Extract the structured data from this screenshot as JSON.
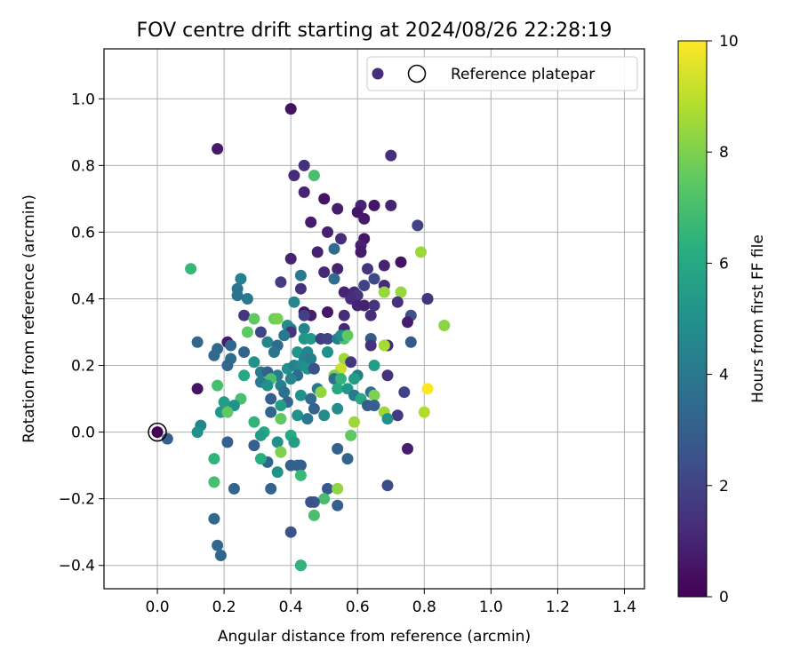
{
  "chart_data": {
    "type": "scatter",
    "title": "FOV centre drift starting at 2024/08/26 22:28:19",
    "xlabel": "Angular distance from reference (arcmin)",
    "ylabel": "Rotation from reference (arcmin)",
    "xlim": [
      -0.16,
      1.46
    ],
    "ylim": [
      -0.47,
      1.15
    ],
    "xticks": [
      "0.0",
      "0.2",
      "0.4",
      "0.6",
      "0.8",
      "1.0",
      "1.2",
      "1.4"
    ],
    "yticks": [
      "−0.4",
      "−0.2",
      "0.0",
      "0.2",
      "0.4",
      "0.6",
      "0.8",
      "1.0"
    ],
    "grid": true,
    "legend": {
      "position": "top-right",
      "entries": [
        "",
        "Reference platepar"
      ]
    },
    "colorbar": {
      "label": "Hours from first FF file",
      "min": 0,
      "max": 10,
      "ticks": [
        "0",
        "2",
        "4",
        "6",
        "8",
        "10"
      ],
      "colormap": "viridis"
    },
    "reference": {
      "x": 0.0,
      "y": 0.0,
      "c": 0.0
    },
    "points": [
      [
        0.4,
        0.97,
        0.5
      ],
      [
        0.18,
        0.85,
        0.7
      ],
      [
        0.7,
        0.83,
        1.3
      ],
      [
        0.44,
        0.8,
        1.4
      ],
      [
        0.47,
        0.77,
        7.0
      ],
      [
        0.41,
        0.77,
        1.2
      ],
      [
        0.44,
        0.72,
        1.0
      ],
      [
        0.5,
        0.7,
        0.5
      ],
      [
        0.7,
        0.68,
        1.0
      ],
      [
        0.65,
        0.68,
        0.6
      ],
      [
        0.61,
        0.68,
        1.0
      ],
      [
        0.54,
        0.67,
        0.8
      ],
      [
        0.6,
        0.66,
        0.6
      ],
      [
        0.46,
        0.63,
        0.8
      ],
      [
        0.62,
        0.64,
        0.7
      ],
      [
        0.78,
        0.62,
        2.0
      ],
      [
        0.51,
        0.6,
        0.9
      ],
      [
        0.55,
        0.58,
        1.3
      ],
      [
        0.62,
        0.58,
        0.6
      ],
      [
        0.61,
        0.56,
        0.9
      ],
      [
        0.53,
        0.55,
        3.5
      ],
      [
        0.61,
        0.54,
        0.7
      ],
      [
        0.48,
        0.54,
        0.9
      ],
      [
        0.79,
        0.54,
        8.5
      ],
      [
        0.4,
        0.52,
        1.0
      ],
      [
        0.73,
        0.51,
        0.5
      ],
      [
        0.68,
        0.5,
        1.0
      ],
      [
        0.63,
        0.49,
        1.5
      ],
      [
        0.1,
        0.49,
        6.6
      ],
      [
        0.54,
        0.49,
        1.0
      ],
      [
        0.5,
        0.48,
        1.1
      ],
      [
        0.43,
        0.47,
        4.0
      ],
      [
        0.53,
        0.46,
        3.5
      ],
      [
        0.65,
        0.46,
        2.2
      ],
      [
        0.25,
        0.46,
        4.3
      ],
      [
        0.37,
        0.45,
        1.8
      ],
      [
        0.68,
        0.44,
        1.2
      ],
      [
        0.62,
        0.44,
        2.0
      ],
      [
        0.24,
        0.43,
        3.8
      ],
      [
        0.43,
        0.43,
        1.4
      ],
      [
        0.68,
        0.42,
        8.4
      ],
      [
        0.73,
        0.42,
        8.4
      ],
      [
        0.56,
        0.42,
        1.0
      ],
      [
        0.59,
        0.42,
        1.2
      ],
      [
        0.6,
        0.41,
        1.5
      ],
      [
        0.24,
        0.41,
        3.8
      ],
      [
        0.81,
        0.4,
        2.3
      ],
      [
        0.81,
        0.4,
        1.5
      ],
      [
        0.58,
        0.4,
        1.3
      ],
      [
        0.27,
        0.4,
        4.0
      ],
      [
        0.41,
        0.39,
        4.5
      ],
      [
        0.72,
        0.39,
        1.4
      ],
      [
        0.6,
        0.38,
        1.0
      ],
      [
        0.62,
        0.38,
        0.9
      ],
      [
        0.65,
        0.38,
        1.5
      ],
      [
        0.44,
        0.36,
        0.6
      ],
      [
        0.51,
        0.36,
        0.6
      ],
      [
        0.46,
        0.35,
        0.8
      ],
      [
        0.76,
        0.35,
        2.5
      ],
      [
        0.56,
        0.35,
        1.3
      ],
      [
        0.64,
        0.35,
        1.3
      ],
      [
        0.26,
        0.35,
        1.6
      ],
      [
        0.35,
        0.34,
        7.7
      ],
      [
        0.29,
        0.34,
        7.5
      ],
      [
        0.36,
        0.34,
        7.9
      ],
      [
        0.86,
        0.32,
        8.2
      ],
      [
        0.39,
        0.32,
        4.8
      ],
      [
        0.4,
        0.31,
        4.5
      ],
      [
        0.56,
        0.31,
        1.1
      ],
      [
        0.75,
        0.33,
        0.8
      ],
      [
        0.44,
        0.31,
        4.5
      ],
      [
        0.31,
        0.3,
        2.1
      ],
      [
        0.4,
        0.3,
        1.5
      ],
      [
        0.27,
        0.3,
        7.5
      ],
      [
        0.38,
        0.29,
        4.0
      ],
      [
        0.44,
        0.28,
        5.2
      ],
      [
        0.46,
        0.28,
        5.4
      ],
      [
        0.49,
        0.28,
        1.8
      ],
      [
        0.51,
        0.28,
        2.0
      ],
      [
        0.54,
        0.28,
        4.2
      ],
      [
        0.56,
        0.28,
        7.0
      ],
      [
        0.55,
        0.29,
        4.8
      ],
      [
        0.57,
        0.29,
        7.5
      ],
      [
        0.64,
        0.28,
        2.8
      ],
      [
        0.12,
        0.27,
        3.3
      ],
      [
        0.21,
        0.27,
        0.7
      ],
      [
        0.33,
        0.27,
        4.5
      ],
      [
        0.36,
        0.26,
        3.5
      ],
      [
        0.64,
        0.26,
        1.4
      ],
      [
        0.69,
        0.26,
        1.1
      ],
      [
        0.68,
        0.26,
        8.6
      ],
      [
        0.76,
        0.27,
        2.8
      ],
      [
        0.18,
        0.25,
        3.4
      ],
      [
        0.22,
        0.26,
        3.3
      ],
      [
        0.26,
        0.24,
        3.2
      ],
      [
        0.42,
        0.24,
        5.2
      ],
      [
        0.45,
        0.24,
        4.5
      ],
      [
        0.51,
        0.24,
        5.0
      ],
      [
        0.35,
        0.24,
        3.8
      ],
      [
        0.17,
        0.23,
        3.4
      ],
      [
        0.22,
        0.22,
        3.6
      ],
      [
        0.29,
        0.21,
        5.0
      ],
      [
        0.44,
        0.22,
        4.4
      ],
      [
        0.46,
        0.22,
        4.2
      ],
      [
        0.56,
        0.22,
        8.5
      ],
      [
        0.58,
        0.21,
        1.6
      ],
      [
        0.21,
        0.2,
        3.3
      ],
      [
        0.39,
        0.19,
        5.0
      ],
      [
        0.41,
        0.2,
        4.3
      ],
      [
        0.43,
        0.2,
        4.8
      ],
      [
        0.45,
        0.19,
        5.0
      ],
      [
        0.47,
        0.19,
        2.5
      ],
      [
        0.55,
        0.19,
        9.2
      ],
      [
        0.53,
        0.17,
        8.0
      ],
      [
        0.65,
        0.2,
        5.5
      ],
      [
        0.69,
        0.17,
        1.4
      ],
      [
        0.6,
        0.17,
        4.2
      ],
      [
        0.31,
        0.18,
        4.2
      ],
      [
        0.33,
        0.18,
        3.0
      ],
      [
        0.26,
        0.17,
        6.0
      ],
      [
        0.36,
        0.17,
        4.2
      ],
      [
        0.42,
        0.17,
        3.5
      ],
      [
        0.4,
        0.16,
        4.5
      ],
      [
        0.53,
        0.16,
        3.5
      ],
      [
        0.55,
        0.16,
        6.5
      ],
      [
        0.59,
        0.16,
        5.5
      ],
      [
        0.34,
        0.16,
        7.0
      ],
      [
        0.31,
        0.15,
        4.2
      ],
      [
        0.33,
        0.14,
        5.0
      ],
      [
        0.37,
        0.14,
        4.3
      ],
      [
        0.48,
        0.13,
        4.0
      ],
      [
        0.54,
        0.13,
        6.0
      ],
      [
        0.57,
        0.13,
        5.2
      ],
      [
        0.18,
        0.14,
        7.0
      ],
      [
        0.64,
        0.12,
        3.8
      ],
      [
        0.74,
        0.12,
        2.0
      ],
      [
        0.38,
        0.12,
        3.7
      ],
      [
        0.49,
        0.12,
        8.3
      ],
      [
        0.59,
        0.11,
        4.0
      ],
      [
        0.43,
        0.11,
        5.0
      ],
      [
        0.34,
        0.1,
        3.0
      ],
      [
        0.61,
        0.1,
        6.0
      ],
      [
        0.65,
        0.11,
        8.0
      ],
      [
        0.25,
        0.1,
        7.0
      ],
      [
        0.39,
        0.09,
        3.2
      ],
      [
        0.46,
        0.1,
        3.5
      ],
      [
        0.2,
        0.09,
        5.5
      ],
      [
        0.23,
        0.08,
        5.0
      ],
      [
        0.37,
        0.08,
        5.5
      ],
      [
        0.47,
        0.07,
        3.2
      ],
      [
        0.63,
        0.08,
        2.9
      ],
      [
        0.65,
        0.08,
        3.0
      ],
      [
        0.19,
        0.06,
        5.2
      ],
      [
        0.21,
        0.06,
        7.5
      ],
      [
        0.34,
        0.06,
        3.2
      ],
      [
        0.42,
        0.05,
        5.0
      ],
      [
        0.5,
        0.05,
        4.8
      ],
      [
        0.54,
        0.07,
        4.8
      ],
      [
        0.68,
        0.06,
        8.5
      ],
      [
        0.72,
        0.05,
        1.7
      ],
      [
        0.8,
        0.06,
        8.8
      ],
      [
        0.69,
        0.04,
        5.0
      ],
      [
        0.29,
        0.03,
        6.5
      ],
      [
        0.37,
        0.04,
        7.5
      ],
      [
        0.59,
        0.03,
        8.5
      ],
      [
        0.45,
        0.04,
        4.0
      ],
      [
        0.13,
        0.02,
        4.5
      ],
      [
        0.12,
        0.0,
        5.0
      ],
      [
        0.32,
        0.0,
        6.0
      ],
      [
        0.31,
        -0.01,
        5.5
      ],
      [
        0.4,
        -0.01,
        6.0
      ],
      [
        0.03,
        -0.02,
        3.0
      ],
      [
        0.21,
        -0.03,
        3.0
      ],
      [
        0.36,
        -0.03,
        5.0
      ],
      [
        0.41,
        -0.03,
        5.5
      ],
      [
        0.58,
        -0.01,
        7.5
      ],
      [
        0.29,
        -0.04,
        3.0
      ],
      [
        0.37,
        -0.06,
        10.0
      ],
      [
        0.37,
        -0.06,
        8.0
      ],
      [
        0.54,
        -0.05,
        3.0
      ],
      [
        0.75,
        -0.05,
        0.8
      ],
      [
        0.17,
        -0.08,
        6.5
      ],
      [
        0.33,
        -0.09,
        3.2
      ],
      [
        0.31,
        -0.08,
        6.2
      ],
      [
        0.42,
        -0.1,
        3.5
      ],
      [
        0.57,
        -0.08,
        3.2
      ],
      [
        0.4,
        -0.1,
        3.0
      ],
      [
        0.43,
        -0.1,
        3.0
      ],
      [
        0.36,
        -0.12,
        5.0
      ],
      [
        0.43,
        -0.13,
        6.7
      ],
      [
        0.17,
        -0.15,
        7.0
      ],
      [
        0.34,
        -0.17,
        3.2
      ],
      [
        0.23,
        -0.17,
        3.2
      ],
      [
        0.51,
        -0.17,
        2.8
      ],
      [
        0.69,
        -0.16,
        2.3
      ],
      [
        0.54,
        -0.17,
        8.3
      ],
      [
        0.5,
        -0.2,
        7.0
      ],
      [
        0.47,
        -0.21,
        2.8
      ],
      [
        0.46,
        -0.21,
        2.5
      ],
      [
        0.54,
        -0.22,
        3.0
      ],
      [
        0.47,
        -0.25,
        7.0
      ],
      [
        0.17,
        -0.26,
        3.4
      ],
      [
        0.4,
        -0.3,
        2.5
      ],
      [
        0.18,
        -0.34,
        3.4
      ],
      [
        0.19,
        -0.37,
        3.3
      ],
      [
        0.43,
        -0.4,
        3.3
      ],
      [
        0.43,
        -0.4,
        6.5
      ],
      [
        0.81,
        0.13,
        10.0
      ],
      [
        0.12,
        0.13,
        0.5
      ],
      [
        0.44,
        0.35,
        1.9
      ]
    ]
  }
}
